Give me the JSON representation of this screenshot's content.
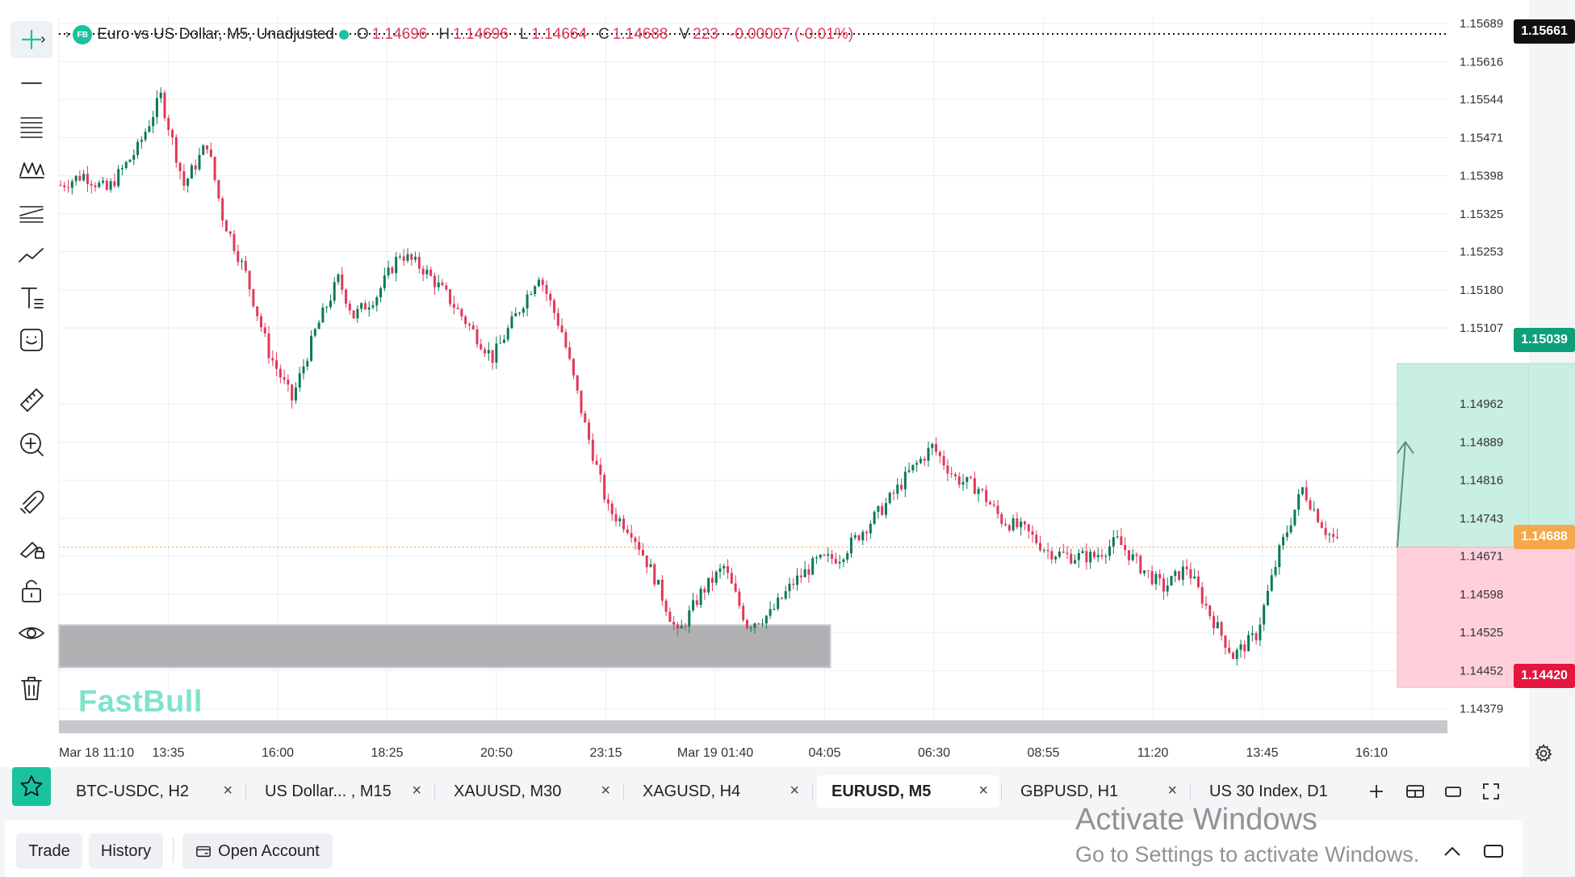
{
  "legend": {
    "logo": "FB",
    "title": "Euro vs US Dollar, M5, Unadjusted",
    "o_label": "O",
    "o_value": "1.14696",
    "h_label": "H",
    "h_value": "1.14696",
    "l_label": "L",
    "l_value": "1.14664",
    "c_label": "C",
    "c_value": "1.14688",
    "v_label": "V",
    "v_value": "223",
    "change": "-0.00007 (-0.01%)"
  },
  "watermark": "FastBull",
  "price_tags": {
    "top": "1.15661",
    "take_profit": "1.15039",
    "current": "1.14688",
    "stop_loss": "1.14420"
  },
  "colors": {
    "accent": "#19c39e",
    "bull": "#0b7a55",
    "bear": "#e0395a",
    "profit_zone": "#c9eee3",
    "loss_zone": "#ffd0db",
    "current_tag": "#f5a84a",
    "top_tag": "#111111",
    "tp_tag": "#0e9f7b",
    "sl_tag": "#e5153f"
  },
  "tools": [
    {
      "name": "crosshair-icon"
    },
    {
      "name": "horizontal-line-icon"
    },
    {
      "name": "fibonacci-icon"
    },
    {
      "name": "pattern-icon"
    },
    {
      "name": "channel-icon"
    },
    {
      "name": "trend-line-icon"
    },
    {
      "name": "text-tool-icon"
    },
    {
      "name": "emoji-icon"
    },
    {
      "name": "ruler-icon"
    },
    {
      "name": "zoom-in-icon"
    },
    {
      "name": "magnet-icon"
    },
    {
      "name": "lock-drawing-icon"
    },
    {
      "name": "unlock-icon"
    },
    {
      "name": "eye-icon"
    },
    {
      "name": "trash-icon"
    }
  ],
  "chart_data": {
    "type": "candlestick",
    "symbol": "EURUSD",
    "timeframe": "M5",
    "y_axis_ticks": [
      "1.15689",
      "1.15616",
      "1.15544",
      "1.15471",
      "1.15398",
      "1.15325",
      "1.15253",
      "1.15180",
      "1.15107",
      "1.14962",
      "1.14889",
      "1.14816",
      "1.14743",
      "1.14671",
      "1.14598",
      "1.14525",
      "1.14452",
      "1.14379"
    ],
    "x_axis_ticks": [
      "Mar 18 11:10",
      "13:35",
      "16:00",
      "18:25",
      "20:50",
      "23:15",
      "Mar 19 01:40",
      "04:05",
      "06:30",
      "08:55",
      "11:20",
      "13:45",
      "16:10"
    ],
    "ylim": [
      1.1436,
      1.157
    ],
    "grid": true,
    "close_path": [
      [
        0,
        1.1538
      ],
      [
        6,
        1.154
      ],
      [
        12,
        1.1537
      ],
      [
        20,
        1.1545
      ],
      [
        26,
        1.1555
      ],
      [
        32,
        1.1538
      ],
      [
        38,
        1.1546
      ],
      [
        42,
        1.1532
      ],
      [
        48,
        1.1521
      ],
      [
        54,
        1.1506
      ],
      [
        60,
        1.1497
      ],
      [
        66,
        1.151
      ],
      [
        72,
        1.152
      ],
      [
        76,
        1.1513
      ],
      [
        82,
        1.1517
      ],
      [
        88,
        1.1525
      ],
      [
        94,
        1.1522
      ],
      [
        100,
        1.1517
      ],
      [
        106,
        1.1511
      ],
      [
        112,
        1.1505
      ],
      [
        118,
        1.1513
      ],
      [
        124,
        1.1521
      ],
      [
        130,
        1.151
      ],
      [
        136,
        1.1492
      ],
      [
        142,
        1.1476
      ],
      [
        148,
        1.1472
      ],
      [
        154,
        1.1463
      ],
      [
        160,
        1.1452
      ],
      [
        166,
        1.146
      ],
      [
        172,
        1.1465
      ],
      [
        178,
        1.1454
      ],
      [
        184,
        1.1456
      ],
      [
        190,
        1.1462
      ],
      [
        196,
        1.1466
      ],
      [
        202,
        1.1467
      ],
      [
        208,
        1.1472
      ],
      [
        214,
        1.1477
      ],
      [
        220,
        1.1483
      ],
      [
        226,
        1.1488
      ],
      [
        232,
        1.1482
      ],
      [
        238,
        1.148
      ],
      [
        244,
        1.1474
      ],
      [
        250,
        1.1472
      ],
      [
        256,
        1.1468
      ],
      [
        262,
        1.1467
      ],
      [
        268,
        1.1467
      ],
      [
        274,
        1.147
      ],
      [
        280,
        1.1465
      ],
      [
        286,
        1.1461
      ],
      [
        292,
        1.1465
      ],
      [
        298,
        1.1456
      ],
      [
        304,
        1.1448
      ],
      [
        310,
        1.1452
      ],
      [
        316,
        1.1468
      ],
      [
        322,
        1.148
      ],
      [
        328,
        1.1472
      ],
      [
        332,
        1.1469
      ]
    ],
    "x_total": 360,
    "demand_zone": {
      "x_from": 0,
      "x_to": 200,
      "y_top": 1.14539,
      "y_bottom": 1.14458
    },
    "position_tool": {
      "x_from": 347,
      "x_to": 415,
      "entry": 1.14688,
      "take_profit": 1.15039,
      "stop_loss": 1.1442
    }
  },
  "tabs": [
    {
      "label": "BTC-USDC, H2",
      "active": false
    },
    {
      "label": "US Dollar... , M15",
      "active": false
    },
    {
      "label": "XAUUSD, M30",
      "active": false
    },
    {
      "label": "XAGUSD, H4",
      "active": false
    },
    {
      "label": "EURUSD, M5",
      "active": true
    },
    {
      "label": "GBPUSD, H1",
      "active": false
    },
    {
      "label": "US 30 Index, D1",
      "active": false
    }
  ],
  "tab_close_glyph": "×",
  "bottom": {
    "trade": "Trade",
    "history": "History",
    "open_account": "Open Account"
  },
  "activate": {
    "line1": "Activate Windows",
    "line2": "Go to Settings to activate Windows."
  }
}
